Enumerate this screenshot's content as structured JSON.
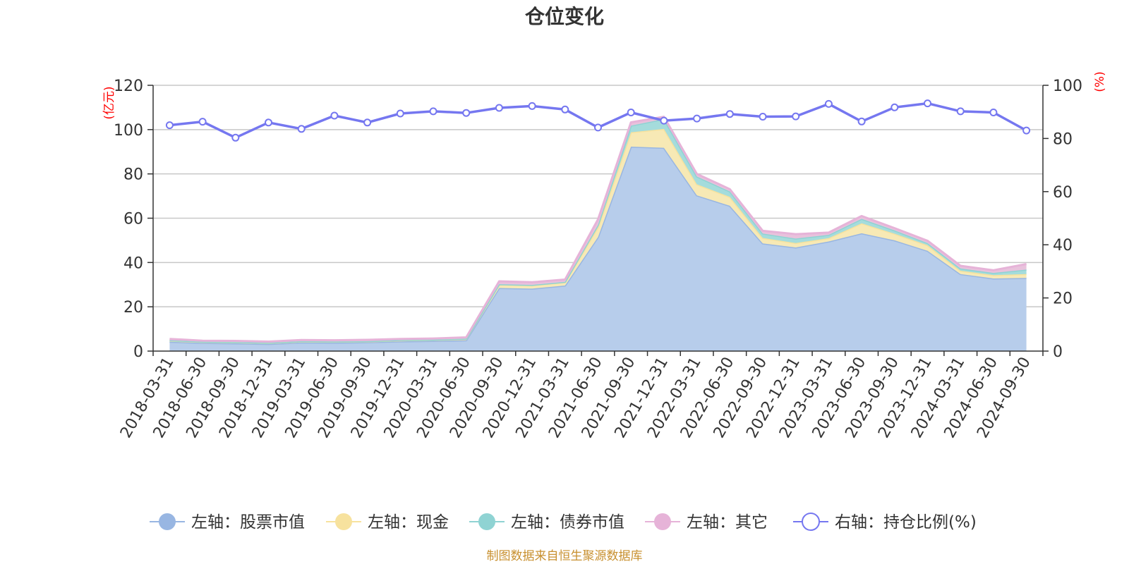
{
  "chart_data": {
    "type": "area",
    "title": "仓位变化",
    "left_axis": {
      "unit_label": "(亿元)",
      "ylim": [
        0,
        120
      ],
      "ticks": [
        "0",
        "20",
        "40",
        "60",
        "80",
        "100",
        "120"
      ]
    },
    "right_axis": {
      "unit_label": "(%)",
      "ylim": [
        0,
        100
      ],
      "ticks": [
        "0",
        "20",
        "40",
        "60",
        "80",
        "100"
      ]
    },
    "categories": [
      "2018-03-31",
      "2018-06-30",
      "2018-09-30",
      "2018-12-31",
      "2019-03-31",
      "2019-06-30",
      "2019-09-30",
      "2019-12-31",
      "2020-03-31",
      "2020-06-30",
      "2020-09-30",
      "2020-12-31",
      "2021-03-31",
      "2021-06-30",
      "2021-09-30",
      "2021-12-31",
      "2022-03-31",
      "2022-06-30",
      "2022-09-30",
      "2022-12-31",
      "2023-03-31",
      "2023-06-30",
      "2023-09-30",
      "2023-12-31",
      "2024-03-31",
      "2024-06-30",
      "2024-09-30"
    ],
    "series": [
      {
        "name": "左轴：股票市值",
        "axis": "left",
        "stacked": true,
        "color": "#98b6e2",
        "fill": "#b7cdeb",
        "values": [
          4.2,
          3.7,
          3.5,
          3.2,
          3.9,
          3.8,
          4.0,
          4.4,
          4.6,
          4.9,
          28.5,
          28.2,
          29.6,
          51.5,
          92.3,
          91.8,
          70.3,
          65.6,
          48.6,
          46.8,
          49.5,
          53.2,
          50.0,
          45.3,
          34.8,
          32.8,
          33.0
        ]
      },
      {
        "name": "左轴：现金",
        "axis": "left",
        "stacked": true,
        "color": "#f7e29e",
        "fill": "#f7e9b5",
        "values": [
          0.6,
          0.5,
          0.5,
          0.5,
          0.5,
          0.5,
          0.4,
          0.5,
          0.5,
          0.6,
          1.5,
          1.5,
          1.5,
          4.5,
          6.5,
          8.5,
          5.0,
          4.0,
          2.5,
          2.0,
          1.5,
          4.5,
          3.0,
          2.5,
          1.5,
          1.5,
          1.8
        ]
      },
      {
        "name": "左轴：债券市值",
        "axis": "left",
        "stacked": true,
        "color": "#8fd3d3",
        "fill": "#a5dcdc",
        "values": [
          0.1,
          0.1,
          0.1,
          0.1,
          0.1,
          0.1,
          0.1,
          0.1,
          0.1,
          0.1,
          0.2,
          0.2,
          0.2,
          1.0,
          3.0,
          4.5,
          3.5,
          2.5,
          2.0,
          2.0,
          1.5,
          2.0,
          1.5,
          1.0,
          1.0,
          1.0,
          2.0
        ]
      },
      {
        "name": "左轴：其它",
        "axis": "left",
        "stacked": true,
        "color": "#e6b3d8",
        "fill": "#e8c2dc",
        "values": [
          0.6,
          0.4,
          0.5,
          0.5,
          0.5,
          0.5,
          0.6,
          0.5,
          0.5,
          0.6,
          1.3,
          1.2,
          1.0,
          2.5,
          1.5,
          1.0,
          1.2,
          1.0,
          1.2,
          2.0,
          1.0,
          1.3,
          1.0,
          1.0,
          1.2,
          1.2,
          2.5
        ]
      },
      {
        "name": "右轴：持仓比例(%)",
        "axis": "right",
        "type": "line",
        "color": "#7577f0",
        "values": [
          85.0,
          86.3,
          80.3,
          86.0,
          83.6,
          88.6,
          86.0,
          89.4,
          90.2,
          89.6,
          91.5,
          92.2,
          90.9,
          84.1,
          89.8,
          86.7,
          87.5,
          89.2,
          88.2,
          88.3,
          93.0,
          86.4,
          91.7,
          93.2,
          90.2,
          89.8,
          83.0
        ]
      }
    ]
  },
  "source_text": "制图数据来自恒生聚源数据库"
}
